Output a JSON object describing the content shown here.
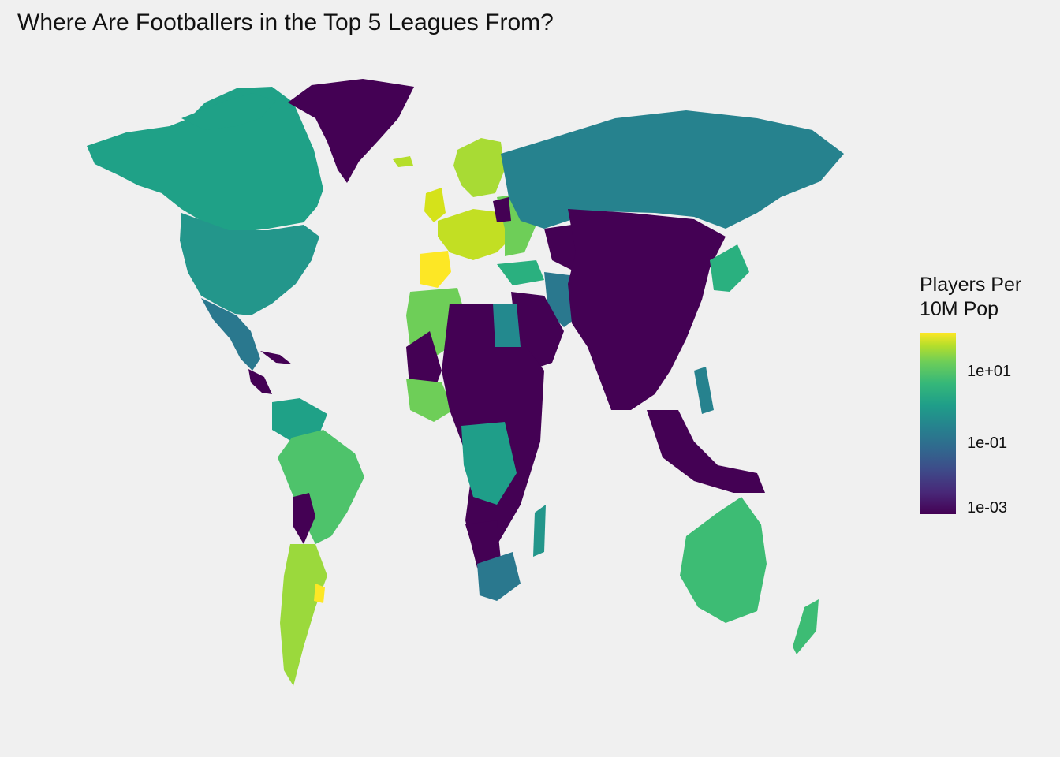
{
  "title": "Where Are Footballers in the Top 5 Leagues From?",
  "legend": {
    "title_line1": "Players Per",
    "title_line2": "10M Pop",
    "ticks": [
      "1e+01",
      "1e-01",
      "1e-03"
    ],
    "scale": "log10",
    "palette": "viridis",
    "colors": [
      "#440154",
      "#31688e",
      "#21918c",
      "#35b779",
      "#fde725"
    ]
  },
  "colors": {
    "background": "#f0f0f0",
    "missing": "#808080"
  }
}
